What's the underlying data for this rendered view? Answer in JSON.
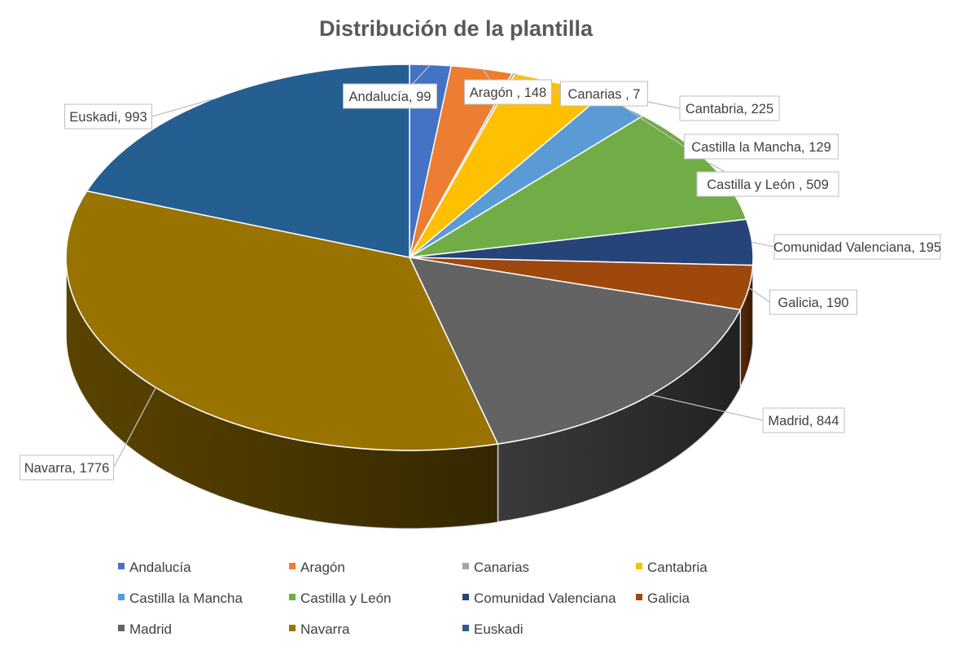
{
  "chart_data": {
    "type": "pie",
    "title": "Distribución de la plantilla",
    "legend_position": "bottom",
    "slices": [
      {
        "name": "Andalucía",
        "value": 99,
        "label": "Andalucía, 99",
        "color": "#4472C4"
      },
      {
        "name": "Aragón",
        "value": 148,
        "label": "Aragón , 148",
        "color": "#ED7D31"
      },
      {
        "name": "Canarias",
        "value": 7,
        "label": "Canarias , 7",
        "color": "#A5A5A5"
      },
      {
        "name": "Cantabria",
        "value": 225,
        "label": "Cantabria, 225",
        "color": "#FFC000"
      },
      {
        "name": "Castilla la Mancha",
        "value": 129,
        "label": "Castilla la Mancha, 129",
        "color": "#5B9BD5"
      },
      {
        "name": "Castilla y León",
        "value": 509,
        "label": "Castilla y León , 509",
        "color": "#70AD47"
      },
      {
        "name": "Comunidad Valenciana",
        "value": 195,
        "label": "Comunidad Valenciana, 195",
        "color": "#264478"
      },
      {
        "name": "Galicia",
        "value": 190,
        "label": "Galicia, 190",
        "color": "#9E480E"
      },
      {
        "name": "Madrid",
        "value": 844,
        "label": "Madrid, 844",
        "color": "#636363"
      },
      {
        "name": "Navarra",
        "value": 1776,
        "label": "Navarra, 1776",
        "color": "#997300"
      },
      {
        "name": "Euskadi",
        "value": 993,
        "label": "Euskadi, 993",
        "color": "#255E91"
      }
    ]
  }
}
